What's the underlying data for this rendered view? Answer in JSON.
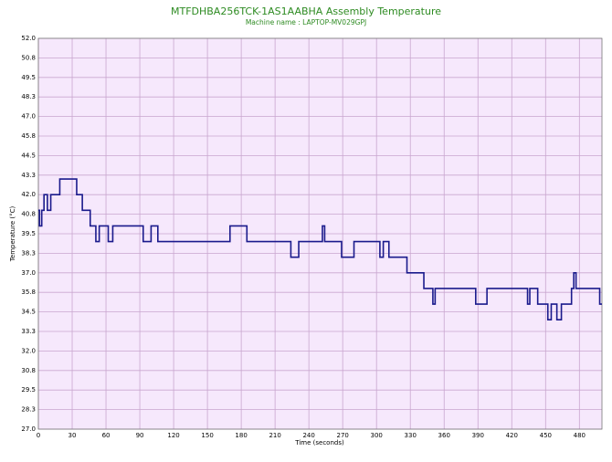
{
  "chart_data": {
    "type": "line",
    "title": "MTFDHBA256TCK-1AS1AABHA Assembly Temperature",
    "subtitle": "Machine name : LAPTOP-MV029GPJ",
    "x_label": "Time (seconds)",
    "y_label": "Temperature (°C)",
    "xlim": [
      0,
      500
    ],
    "xticks": [
      0,
      30,
      60,
      90,
      120,
      150,
      180,
      210,
      240,
      270,
      300,
      330,
      360,
      390,
      420,
      450,
      480
    ],
    "ylim": [
      27,
      52
    ],
    "yticks": [
      {
        "value": 52,
        "label": "52.0"
      },
      {
        "value": 50.75,
        "label": "50.8"
      },
      49.5,
      {
        "value": 48.25,
        "label": "48.3"
      },
      {
        "value": 47,
        "label": "47.0"
      },
      {
        "value": 45.75,
        "label": "45.8"
      },
      44.5,
      {
        "value": 43.25,
        "label": "43.3"
      },
      {
        "value": 42,
        "label": "42.0"
      },
      {
        "value": 40.75,
        "label": "40.8"
      },
      39.5,
      {
        "value": 38.25,
        "label": "38.3"
      },
      {
        "value": 37,
        "label": "37.0"
      },
      {
        "value": 35.75,
        "label": "35.8"
      },
      34.5,
      {
        "value": 33.25,
        "label": "33.3"
      },
      {
        "value": 32,
        "label": "32.0"
      },
      {
        "value": 30.75,
        "label": "30.8"
      },
      29.5,
      {
        "value": 28.25,
        "label": "28.3"
      },
      {
        "value": 27,
        "label": "27.0"
      }
    ],
    "grid": true,
    "series": [
      {
        "color": "#1a1a8c",
        "x": [
          0,
          1,
          1,
          3,
          3,
          5,
          5,
          8,
          8,
          11,
          11,
          19,
          19,
          34,
          34,
          39,
          39,
          46,
          46,
          51,
          51,
          54,
          54,
          62,
          62,
          66,
          66,
          93,
          93,
          100,
          100,
          106,
          106,
          170,
          170,
          185,
          185,
          224,
          224,
          231,
          231,
          252,
          252,
          254,
          254,
          269,
          269,
          280,
          280,
          303,
          303,
          306,
          306,
          311,
          311,
          327,
          327,
          342,
          342,
          350,
          350,
          352,
          352,
          388,
          388,
          398,
          398,
          434,
          434,
          436,
          436,
          443,
          443,
          452,
          452,
          455,
          455,
          460,
          460,
          464,
          464,
          473,
          473,
          475,
          475,
          477,
          477,
          498,
          498,
          500
        ],
        "values": [
          41,
          41,
          40,
          40,
          41,
          41,
          42,
          42,
          41,
          41,
          42,
          42,
          43,
          43,
          42,
          42,
          41,
          41,
          40,
          40,
          39,
          39,
          40,
          40,
          39,
          39,
          40,
          40,
          39,
          39,
          40,
          40,
          39,
          39,
          40,
          40,
          39,
          39,
          38,
          38,
          39,
          39,
          40,
          40,
          39,
          39,
          38,
          38,
          39,
          39,
          38,
          38,
          39,
          39,
          38,
          38,
          37,
          37,
          36,
          36,
          35,
          35,
          36,
          36,
          35,
          35,
          36,
          36,
          35,
          35,
          36,
          36,
          35,
          35,
          34,
          34,
          35,
          35,
          34,
          34,
          35,
          35,
          36,
          36,
          37,
          37,
          36,
          36,
          35,
          35
        ]
      }
    ]
  }
}
